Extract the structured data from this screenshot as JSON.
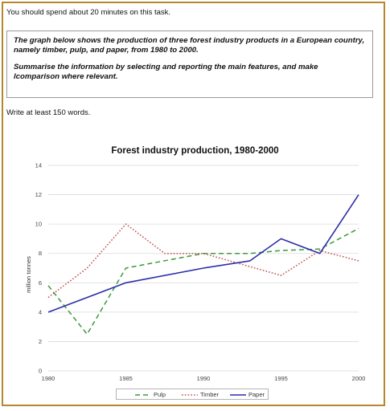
{
  "instructions": {
    "intro": "You should spend about 20 minutes on this task.",
    "task_paragraph_1": "The graph below shows the production of three forest industry products in a European country, namely timber, pulp, and paper, from 1980 to 2000.",
    "task_paragraph_2": "Summarise the information by selecting and reporting the main features, and make lcomparison where relevant.",
    "word_count": "Write at least 150 words."
  },
  "chart_data": {
    "type": "line",
    "title": "Forest industry production, 1980-2000",
    "xlabel": "",
    "ylabel": "million tonnes",
    "x_ticks": [
      1980,
      1985,
      1990,
      1995,
      2000
    ],
    "xlim": [
      1980,
      2000
    ],
    "ylim": [
      0,
      14
    ],
    "y_ticks": [
      0,
      2,
      4,
      6,
      8,
      10,
      12,
      14
    ],
    "grid": "horizontal",
    "legend_position": "bottom",
    "series": [
      {
        "name": "Pulp",
        "color": "#3a9a3a",
        "style": "dashed",
        "points": [
          [
            1980,
            5.8
          ],
          [
            1982.5,
            2.5
          ],
          [
            1985,
            7
          ],
          [
            1990,
            8
          ],
          [
            1993,
            8
          ],
          [
            1995,
            8.2
          ],
          [
            1997.5,
            8.3
          ],
          [
            2000,
            9.7
          ]
        ]
      },
      {
        "name": "Timber",
        "color": "#c0504d",
        "style": "dotted",
        "points": [
          [
            1980,
            5
          ],
          [
            1982.5,
            7
          ],
          [
            1985,
            10
          ],
          [
            1987.5,
            8
          ],
          [
            1990,
            8
          ],
          [
            1995,
            6.5
          ],
          [
            1997.5,
            8.2
          ],
          [
            2000,
            7.5
          ]
        ]
      },
      {
        "name": "Paper",
        "color": "#2b2fa8",
        "style": "solid",
        "points": [
          [
            1980,
            4
          ],
          [
            1985,
            6
          ],
          [
            1990,
            7
          ],
          [
            1993,
            7.5
          ],
          [
            1995,
            9
          ],
          [
            1997.5,
            8
          ],
          [
            2000,
            12
          ]
        ]
      }
    ]
  }
}
